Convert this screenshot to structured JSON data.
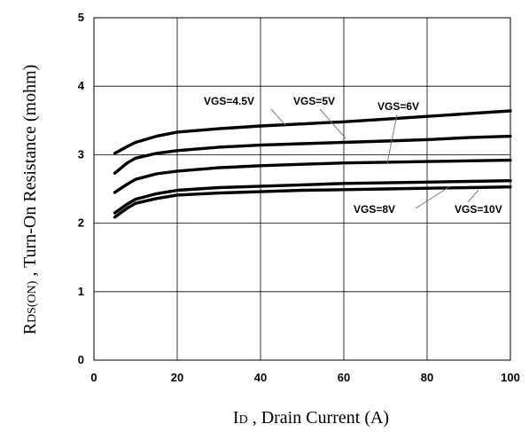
{
  "chart_data": {
    "type": "line",
    "xlim": [
      0,
      100
    ],
    "ylim": [
      0,
      5
    ],
    "x_ticks": [
      "0",
      "20",
      "40",
      "60",
      "80",
      "100"
    ],
    "y_ticks": [
      "0",
      "1",
      "2",
      "3",
      "4",
      "5"
    ],
    "grid": true,
    "x": [
      5,
      8,
      10,
      15,
      20,
      30,
      40,
      50,
      60,
      70,
      80,
      90,
      100
    ],
    "series": [
      {
        "name": "VGS=4.5V",
        "values": [
          3.02,
          3.12,
          3.18,
          3.27,
          3.33,
          3.38,
          3.42,
          3.45,
          3.48,
          3.52,
          3.56,
          3.6,
          3.64
        ]
      },
      {
        "name": "VGS=5V",
        "values": [
          2.73,
          2.88,
          2.95,
          3.02,
          3.06,
          3.11,
          3.14,
          3.16,
          3.18,
          3.2,
          3.22,
          3.25,
          3.27
        ]
      },
      {
        "name": "VGS=6V",
        "values": [
          2.45,
          2.57,
          2.64,
          2.72,
          2.76,
          2.81,
          2.84,
          2.86,
          2.88,
          2.89,
          2.9,
          2.91,
          2.92
        ]
      },
      {
        "name": "VGS=8V",
        "values": [
          2.15,
          2.28,
          2.35,
          2.43,
          2.48,
          2.52,
          2.54,
          2.56,
          2.58,
          2.59,
          2.6,
          2.61,
          2.62
        ]
      },
      {
        "name": "VGS=10V",
        "values": [
          2.09,
          2.22,
          2.29,
          2.36,
          2.41,
          2.44,
          2.46,
          2.48,
          2.49,
          2.5,
          2.51,
          2.52,
          2.53
        ]
      }
    ],
    "xlabel": {
      "main": "I",
      "sub": "D",
      "rest": " , Drain Current (A)"
    },
    "ylabel": {
      "main": "R",
      "sub": "DS(ON)",
      "rest": " , Turn-On Resistance (mohm)"
    },
    "colors": {
      "line": "#000000",
      "grid": "#000000",
      "background": "#ffffff"
    }
  }
}
